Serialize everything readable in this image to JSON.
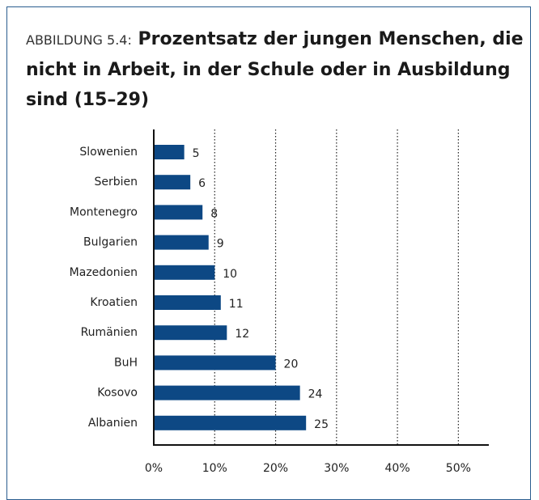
{
  "chart_data": {
    "type": "barh",
    "label": "ABBILDUNG 5.4:",
    "title": "Prozentsatz der jungen Menschen, die nicht in Arbeit, in der Schule oder in Ausbildung sind (15–29)",
    "categories": [
      "Slowenien",
      "Serbien",
      "Montenegro",
      "Bulgarien",
      "Mazedonien",
      "Kroatien",
      "Rumänien",
      "BuH",
      "Kosovo",
      "Albanien"
    ],
    "values": [
      5,
      6,
      8,
      9,
      10,
      11,
      12,
      20,
      24,
      25
    ],
    "color": "#0d4884",
    "xlim": [
      0,
      55
    ],
    "xticks": [
      {
        "value": 0,
        "label": "0%"
      },
      {
        "value": 10,
        "label": "10%"
      },
      {
        "value": 20,
        "label": "20%"
      },
      {
        "value": 30,
        "label": "30%"
      },
      {
        "value": 40,
        "label": "40%"
      },
      {
        "value": 50,
        "label": "50%"
      }
    ],
    "grid": true
  }
}
